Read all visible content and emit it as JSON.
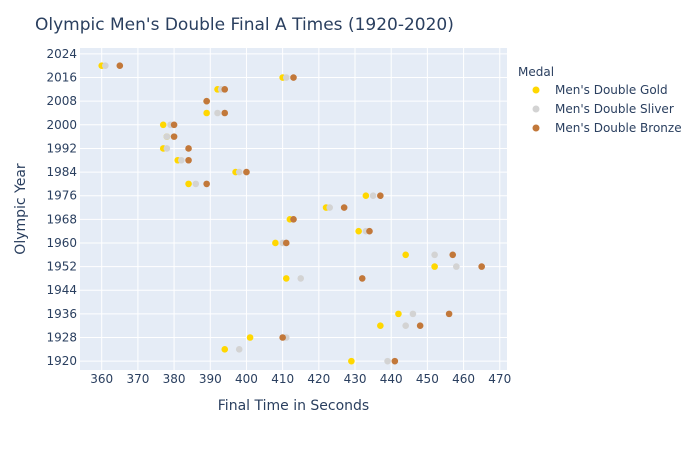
{
  "chart_data": {
    "type": "scatter",
    "title": "Olympic Men's Double Final A Times (1920-2020)",
    "xlabel": "Final Time in Seconds",
    "ylabel": "Olympic Year",
    "xlim": [
      354,
      472
    ],
    "ylim": [
      1917,
      2026
    ],
    "x_ticks": [
      360,
      370,
      380,
      390,
      400,
      410,
      420,
      430,
      440,
      450,
      460,
      470
    ],
    "y_ticks": [
      1920,
      1928,
      1936,
      1944,
      1952,
      1960,
      1968,
      1976,
      1984,
      1992,
      2000,
      2008,
      2016,
      2024
    ],
    "grid": true,
    "legend_title": "Medal",
    "legend_position": "right",
    "series": [
      {
        "name": "Men's Double Gold",
        "color": "#FFD700",
        "points": [
          {
            "x": 429,
            "y": 1920
          },
          {
            "x": 394,
            "y": 1924
          },
          {
            "x": 401,
            "y": 1928
          },
          {
            "x": 437,
            "y": 1932
          },
          {
            "x": 442,
            "y": 1936
          },
          {
            "x": 411,
            "y": 1948
          },
          {
            "x": 452,
            "y": 1952
          },
          {
            "x": 444,
            "y": 1956
          },
          {
            "x": 408,
            "y": 1960
          },
          {
            "x": 431,
            "y": 1964
          },
          {
            "x": 412,
            "y": 1968
          },
          {
            "x": 422,
            "y": 1972
          },
          {
            "x": 433,
            "y": 1976
          },
          {
            "x": 384,
            "y": 1980
          },
          {
            "x": 397,
            "y": 1984
          },
          {
            "x": 381,
            "y": 1988
          },
          {
            "x": 377,
            "y": 1992
          },
          {
            "x": 378,
            "y": 1996
          },
          {
            "x": 377,
            "y": 2000
          },
          {
            "x": 389,
            "y": 2004
          },
          {
            "x": 389,
            "y": 2008
          },
          {
            "x": 392,
            "y": 2012
          },
          {
            "x": 410,
            "y": 2016
          },
          {
            "x": 360,
            "y": 2020
          }
        ]
      },
      {
        "name": "Men's Double Sliver",
        "color": "#D3D3D3",
        "points": [
          {
            "x": 439,
            "y": 1920
          },
          {
            "x": 398,
            "y": 1924
          },
          {
            "x": 411,
            "y": 1928
          },
          {
            "x": 444,
            "y": 1932
          },
          {
            "x": 446,
            "y": 1936
          },
          {
            "x": 415,
            "y": 1948
          },
          {
            "x": 458,
            "y": 1952
          },
          {
            "x": 452,
            "y": 1956
          },
          {
            "x": 410,
            "y": 1960
          },
          {
            "x": 433,
            "y": 1964
          },
          {
            "x": 413,
            "y": 1968
          },
          {
            "x": 423,
            "y": 1972
          },
          {
            "x": 435,
            "y": 1976
          },
          {
            "x": 386,
            "y": 1980
          },
          {
            "x": 398,
            "y": 1984
          },
          {
            "x": 382,
            "y": 1988
          },
          {
            "x": 378,
            "y": 1992
          },
          {
            "x": 378,
            "y": 1996
          },
          {
            "x": 379,
            "y": 2000
          },
          {
            "x": 392,
            "y": 2004
          },
          {
            "x": 389,
            "y": 2008
          },
          {
            "x": 393,
            "y": 2012
          },
          {
            "x": 411,
            "y": 2016
          },
          {
            "x": 361,
            "y": 2020
          }
        ]
      },
      {
        "name": "Men's Double Bronze",
        "color": "#C2783A",
        "points": [
          {
            "x": 441,
            "y": 1920
          },
          {
            "x": 410,
            "y": 1928
          },
          {
            "x": 448,
            "y": 1932
          },
          {
            "x": 456,
            "y": 1936
          },
          {
            "x": 432,
            "y": 1948
          },
          {
            "x": 465,
            "y": 1952
          },
          {
            "x": 457,
            "y": 1956
          },
          {
            "x": 411,
            "y": 1960
          },
          {
            "x": 434,
            "y": 1964
          },
          {
            "x": 413,
            "y": 1968
          },
          {
            "x": 427,
            "y": 1972
          },
          {
            "x": 437,
            "y": 1976
          },
          {
            "x": 389,
            "y": 1980
          },
          {
            "x": 400,
            "y": 1984
          },
          {
            "x": 384,
            "y": 1988
          },
          {
            "x": 384,
            "y": 1992
          },
          {
            "x": 380,
            "y": 1996
          },
          {
            "x": 380,
            "y": 2000
          },
          {
            "x": 394,
            "y": 2004
          },
          {
            "x": 389,
            "y": 2008
          },
          {
            "x": 394,
            "y": 2012
          },
          {
            "x": 413,
            "y": 2016
          },
          {
            "x": 365,
            "y": 2020
          }
        ]
      }
    ]
  }
}
